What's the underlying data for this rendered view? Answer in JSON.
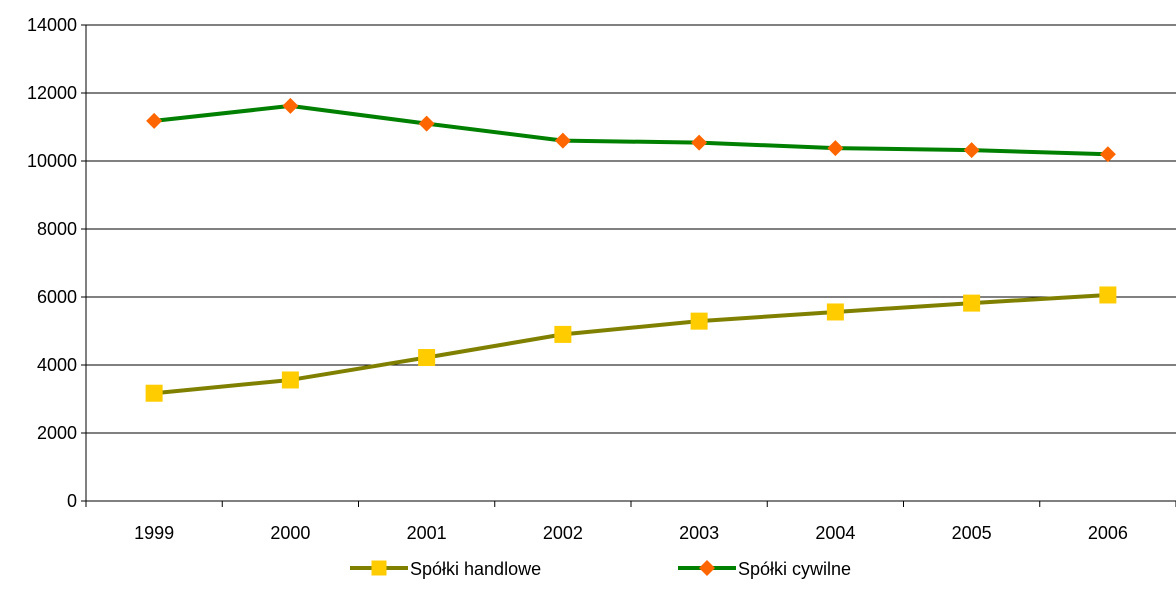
{
  "chart_data": {
    "type": "line",
    "title": "",
    "xlabel": "",
    "ylabel": "",
    "categories": [
      "1999",
      "2000",
      "2001",
      "2002",
      "2003",
      "2004",
      "2005",
      "2006"
    ],
    "ylim": [
      0,
      14000
    ],
    "yticks": [
      0,
      2000,
      4000,
      6000,
      8000,
      10000,
      12000,
      14000
    ],
    "grid": true,
    "legend_position": "bottom",
    "series": [
      {
        "name": "Spółki handlowe",
        "values": [
          3170,
          3560,
          4220,
          4900,
          5290,
          5560,
          5820,
          6060
        ],
        "line_color": "#808000",
        "marker": "square",
        "marker_color": "#FFCC00"
      },
      {
        "name": "Spółki cywilne",
        "values": [
          11180,
          11620,
          11100,
          10600,
          10540,
          10380,
          10320,
          10200
        ],
        "line_color": "#008000",
        "marker": "diamond",
        "marker_color": "#FF6600"
      }
    ]
  }
}
